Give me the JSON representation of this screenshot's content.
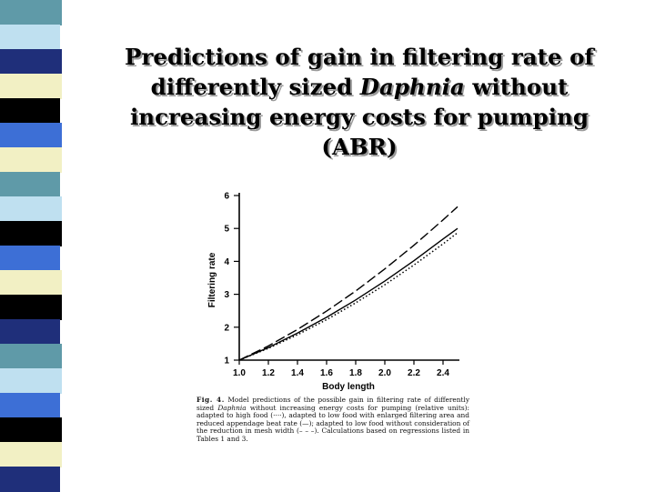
{
  "slide": {
    "title_pre": "Predictions of gain in filtering rate of differently sized ",
    "title_italic": "Daphnia",
    "title_post": " without increasing energy costs for pumping (ABR)",
    "sidebar_colors": [
      "#5f9aa8",
      "#bfe0f0",
      "#1f2f7a",
      "#f2f0c4",
      "#000000",
      "#3d6fd6",
      "#f2f0c4",
      "#5f9aa8",
      "#bfe0f0",
      "#000000",
      "#3d6fd6",
      "#f2f0c4",
      "#000000",
      "#1f2f7a",
      "#5f9aa8",
      "#bfe0f0",
      "#3d6fd6",
      "#000000",
      "#f2f0c4",
      "#1f2f7a"
    ]
  },
  "caption": {
    "label": "Fig. 4.",
    "text_a": "   Model predictions of the possible gain in filtering rate of differently sized ",
    "italic": "Daphnia",
    "text_b": " without increasing energy costs for pumping (relative units): adapted to high food (····), adapted to low food with enlarged filtering area and reduced appendage beat rate (—); adapted to low food without consideration of the reduction in mesh width (– – –). Calculations based on regressions listed in Tables 1 and 3."
  },
  "chart_data": {
    "type": "line",
    "xlabel": "Body length",
    "ylabel": "Filtering rate",
    "xlim": [
      1.0,
      2.5
    ],
    "ylim": [
      1,
      6
    ],
    "xticks": [
      "1.0",
      "1.2",
      "1.4",
      "1.6",
      "1.8",
      "2.0",
      "2.2",
      "2.4"
    ],
    "yticks": [
      "1",
      "2",
      "3",
      "4",
      "5",
      "6"
    ],
    "grid": false,
    "series": [
      {
        "style": "solid",
        "x": [
          1.0,
          1.2,
          1.4,
          1.6,
          1.8,
          2.0,
          2.2,
          2.4,
          2.5
        ],
        "y": [
          1.0,
          1.38,
          1.82,
          2.3,
          2.83,
          3.4,
          4.02,
          4.68,
          5.0
        ]
      },
      {
        "style": "dashed",
        "x": [
          1.0,
          1.2,
          1.4,
          1.6,
          1.8,
          2.0,
          2.2,
          2.4,
          2.5
        ],
        "y": [
          1.0,
          1.43,
          1.93,
          2.49,
          3.1,
          3.77,
          4.49,
          5.26,
          5.66
        ]
      },
      {
        "style": "dotted",
        "x": [
          1.0,
          1.2,
          1.4,
          1.6,
          1.8,
          2.0,
          2.2,
          2.4,
          2.5
        ],
        "y": [
          1.0,
          1.36,
          1.77,
          2.23,
          2.74,
          3.29,
          3.89,
          4.53,
          4.87
        ]
      }
    ]
  }
}
